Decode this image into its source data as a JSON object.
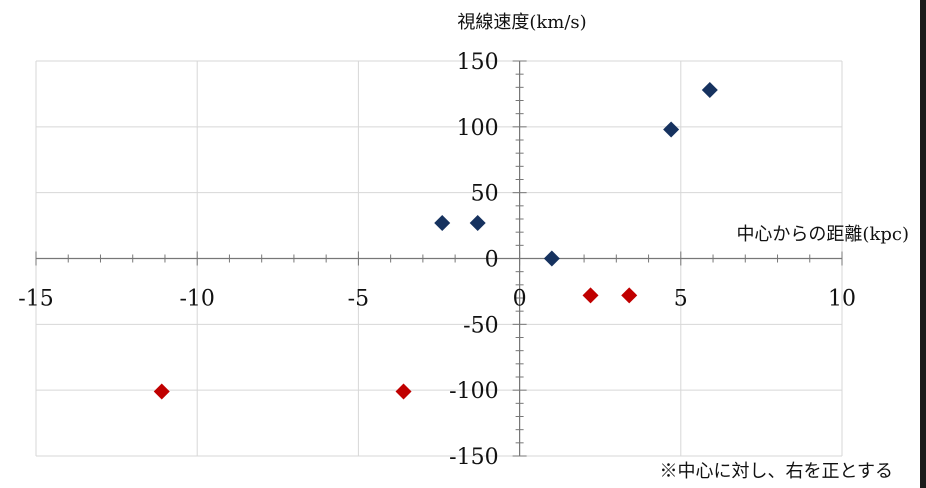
{
  "chart_data": {
    "type": "scatter",
    "title": "",
    "xlabel": "中心からの距離(kpc)",
    "ylabel": "視線速度(km/s)",
    "note": "※中心に対し、右を正とする",
    "xlim": [
      -15,
      10
    ],
    "ylim": [
      -150,
      150
    ],
    "x_major_ticks": [
      -15,
      -10,
      -5,
      0,
      5,
      10
    ],
    "y_major_ticks": [
      -150,
      -100,
      -50,
      0,
      50,
      100,
      150
    ],
    "x_minor_step": 1,
    "y_minor_step": 10,
    "x_tick_labels": [
      "-15",
      "-10",
      "-5",
      "0",
      "5",
      "10"
    ],
    "y_tick_labels": [
      "-150",
      "-100",
      "-50",
      "0",
      "50",
      "100",
      "150"
    ],
    "grid": true,
    "legend": "none",
    "colors": {
      "blue": "#16325f",
      "red": "#c00000",
      "grid": "#d7d7d7",
      "axis": "#777777"
    },
    "series": [
      {
        "color_key": "blue",
        "points": [
          {
            "x": -2.4,
            "y": 27
          },
          {
            "x": -1.3,
            "y": 27
          },
          {
            "x": 1.0,
            "y": 0
          },
          {
            "x": 4.7,
            "y": 98
          },
          {
            "x": 5.9,
            "y": 128
          }
        ]
      },
      {
        "color_key": "red",
        "points": [
          {
            "x": -11.1,
            "y": -101
          },
          {
            "x": -3.6,
            "y": -101
          },
          {
            "x": 2.2,
            "y": -28
          },
          {
            "x": 3.4,
            "y": -28
          }
        ]
      }
    ]
  }
}
